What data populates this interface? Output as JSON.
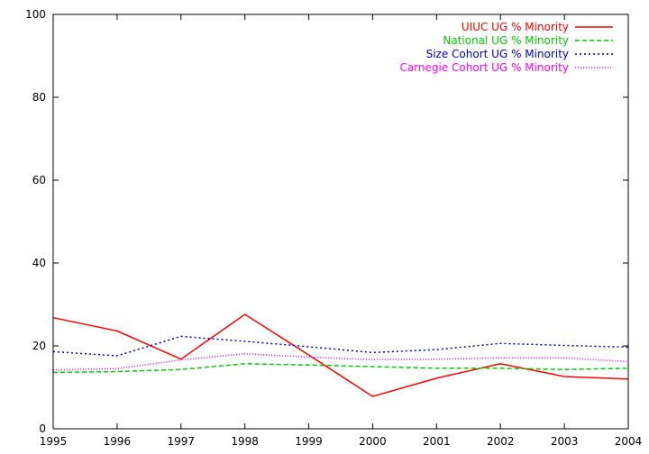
{
  "chart_data": {
    "type": "line",
    "title": "",
    "xlabel": "",
    "ylabel": "",
    "x": [
      1995,
      1996,
      1997,
      1998,
      1999,
      2000,
      2001,
      2002,
      2003,
      2004
    ],
    "x_tick_labels": [
      "1995",
      "1996",
      "1997",
      "1998",
      "1999",
      "2000",
      "2001",
      "2002",
      "2003",
      "2004"
    ],
    "xlim": [
      1995,
      2004
    ],
    "ylim": [
      0,
      100
    ],
    "y_ticks": [
      0,
      20,
      40,
      60,
      80,
      100
    ],
    "y_tick_labels": [
      "0",
      "20",
      "40",
      "60",
      "80",
      "100"
    ],
    "grid": false,
    "legend_position": "top-right",
    "series": [
      {
        "name": "UIUC UG % Minority",
        "color": "#ff0000",
        "dash": "solid",
        "values": [
          26.8,
          23.6,
          16.8,
          27.6,
          17.8,
          7.8,
          12.2,
          15.7,
          12.6,
          12.0
        ]
      },
      {
        "name": "National UG % Minority",
        "color": "#00cc00",
        "dash": "dashed",
        "values": [
          13.6,
          13.8,
          14.3,
          15.7,
          15.4,
          15.0,
          14.6,
          14.6,
          14.3,
          14.6
        ]
      },
      {
        "name": "Size Cohort UG % Minority",
        "color": "#0000cc",
        "dash": "dotted",
        "values": [
          18.6,
          17.6,
          22.3,
          21.1,
          19.8,
          18.4,
          19.1,
          20.6,
          20.1,
          19.7
        ]
      },
      {
        "name": "Carnegie Cohort UG % Minority",
        "color": "#ff00ff",
        "dash": "fine-dotted",
        "values": [
          14.2,
          14.5,
          16.6,
          18.1,
          17.3,
          16.7,
          16.8,
          17.1,
          17.1,
          16.2
        ]
      }
    ]
  }
}
